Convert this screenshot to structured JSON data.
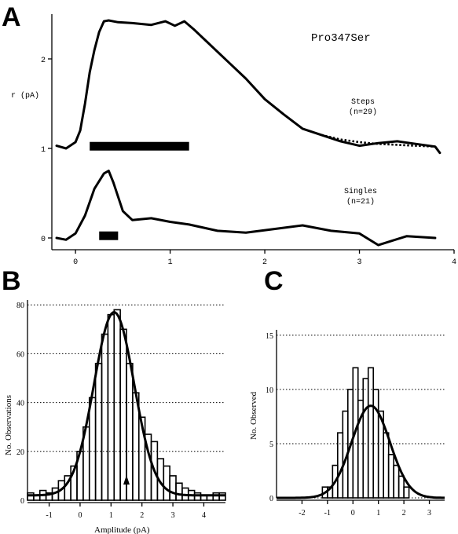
{
  "panel_labels": {
    "a": "A",
    "b": "B",
    "c": "C"
  },
  "chart_data": [
    {
      "id": "A",
      "type": "line",
      "title": "Pro347Ser",
      "ylabel": "r (pA)",
      "xlim": [
        -0.25,
        4.0
      ],
      "ylim": [
        -0.1,
        2.5
      ],
      "x_ticks": [
        0,
        1,
        2,
        3,
        4
      ],
      "y_ticks": [
        0,
        1,
        2
      ],
      "grid": false,
      "series": [
        {
          "name": "Steps",
          "annotation": [
            "Steps",
            "(n=29)"
          ],
          "x": [
            -0.2,
            -0.1,
            0.0,
            0.05,
            0.1,
            0.15,
            0.2,
            0.25,
            0.3,
            0.35,
            0.45,
            0.6,
            0.8,
            0.95,
            1.05,
            1.15,
            1.25,
            1.4,
            1.6,
            1.8,
            2.0,
            2.2,
            2.4,
            2.6,
            2.8,
            3.0,
            3.2,
            3.4,
            3.6,
            3.8,
            3.85
          ],
          "y": [
            1.03,
            1.0,
            1.07,
            1.2,
            1.5,
            1.85,
            2.1,
            2.3,
            2.42,
            2.43,
            2.41,
            2.4,
            2.38,
            2.42,
            2.37,
            2.42,
            2.33,
            2.18,
            1.98,
            1.78,
            1.55,
            1.38,
            1.22,
            1.15,
            1.08,
            1.03,
            1.06,
            1.08,
            1.05,
            1.02,
            0.95
          ]
        },
        {
          "name": "Singles",
          "annotation": [
            "Singles",
            "(n=21)"
          ],
          "x": [
            -0.2,
            -0.1,
            0.0,
            0.1,
            0.2,
            0.3,
            0.35,
            0.4,
            0.5,
            0.6,
            0.8,
            1.0,
            1.2,
            1.5,
            1.8,
            2.1,
            2.4,
            2.7,
            3.0,
            3.2,
            3.5,
            3.8
          ],
          "y": [
            0.0,
            -0.02,
            0.05,
            0.25,
            0.55,
            0.72,
            0.75,
            0.62,
            0.3,
            0.2,
            0.22,
            0.18,
            0.15,
            0.08,
            0.06,
            0.1,
            0.14,
            0.08,
            0.05,
            -0.08,
            0.02,
            0.0
          ]
        }
      ],
      "fit": {
        "style": "dotted",
        "x": [
          2.6,
          2.8,
          3.0,
          3.2,
          3.4,
          3.6,
          3.8
        ],
        "y": [
          1.15,
          1.1,
          1.07,
          1.05,
          1.04,
          1.03,
          1.02
        ]
      },
      "bars": [
        {
          "x0": 0.15,
          "x1": 1.2,
          "y": 1.02
        },
        {
          "x0": 0.25,
          "x1": 0.45,
          "y": 0.02
        }
      ]
    },
    {
      "id": "B",
      "type": "bar",
      "xlabel": "Amplitude (pA)",
      "ylabel": "No. Observations",
      "xlim": [
        -1.7,
        4.7
      ],
      "ylim": [
        0,
        82
      ],
      "x_ticks": [
        -1,
        0,
        1,
        2,
        3,
        4
      ],
      "y_ticks": [
        0,
        20,
        40,
        60,
        80
      ],
      "grid": true,
      "bins": [
        -1.6,
        -1.4,
        -1.2,
        -1.0,
        -0.8,
        -0.6,
        -0.4,
        -0.2,
        0.0,
        0.2,
        0.4,
        0.6,
        0.8,
        1.0,
        1.2,
        1.4,
        1.6,
        1.8,
        2.0,
        2.2,
        2.4,
        2.6,
        2.8,
        3.0,
        3.2,
        3.4,
        3.6,
        3.8,
        4.0,
        4.2,
        4.4,
        4.6
      ],
      "values": [
        3,
        2,
        4,
        3,
        5,
        8,
        10,
        14,
        20,
        30,
        42,
        56,
        68,
        76,
        78,
        70,
        56,
        44,
        34,
        27,
        24,
        17,
        14,
        10,
        7,
        5,
        4,
        3,
        2,
        2,
        3,
        3
      ],
      "fit": {
        "mean": 1.1,
        "sd": 0.65,
        "amplitude": 75,
        "baseline": 2
      },
      "arrow_x": 1.5
    },
    {
      "id": "C",
      "type": "bar",
      "xlabel": "",
      "ylabel": "No. Observed",
      "xlim": [
        -3.0,
        3.6
      ],
      "ylim": [
        0,
        15.5
      ],
      "x_ticks": [
        -2,
        -1,
        0,
        1,
        2,
        3
      ],
      "y_ticks": [
        0,
        5,
        10,
        15
      ],
      "grid": true,
      "bins": [
        -1.3,
        -1.1,
        -0.9,
        -0.7,
        -0.5,
        -0.3,
        -0.1,
        0.1,
        0.3,
        0.5,
        0.7,
        0.9,
        1.1,
        1.3,
        1.5,
        1.7,
        1.9,
        2.1,
        2.3
      ],
      "values": [
        0,
        1,
        1,
        3,
        6,
        8,
        10,
        12,
        9,
        11,
        12,
        10,
        8,
        6,
        4,
        3,
        2,
        1,
        0
      ],
      "fit": {
        "mean": 0.7,
        "sd": 0.75,
        "amplitude": 8.5,
        "baseline": 0
      }
    }
  ]
}
